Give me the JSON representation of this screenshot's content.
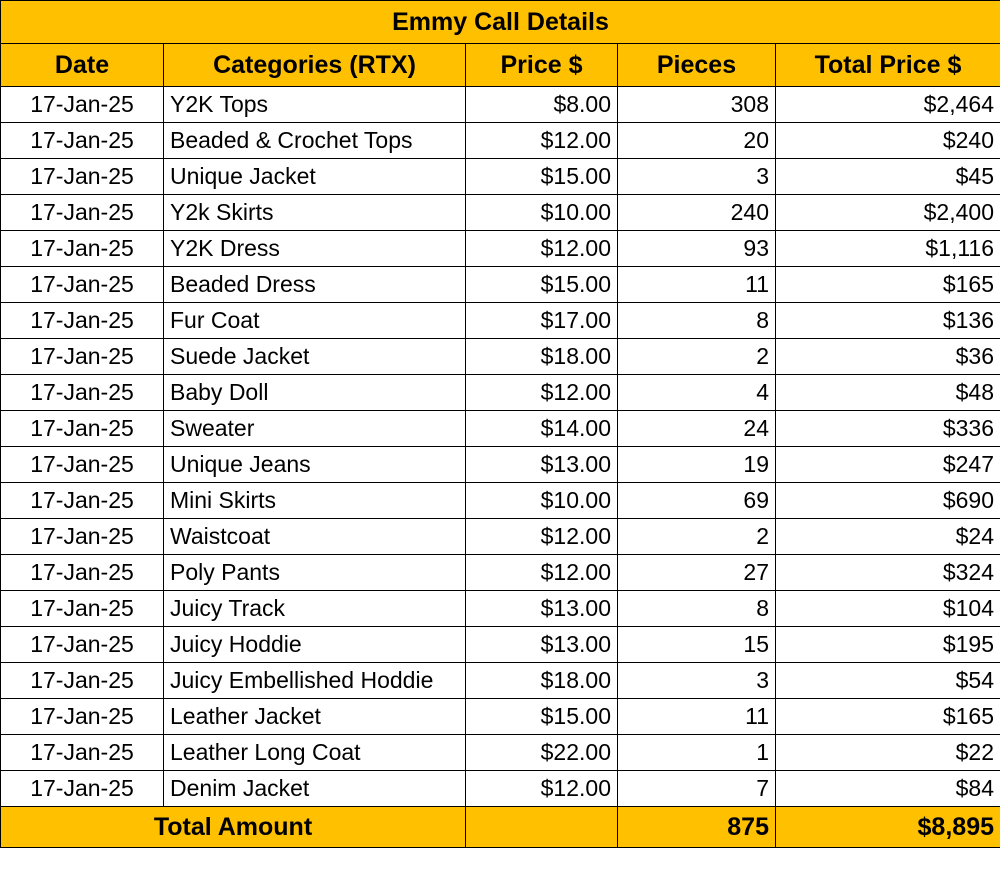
{
  "title": "Emmy Call Details",
  "table": {
    "headers": [
      "Date",
      "Categories (RTX)",
      "Price $",
      "Pieces",
      "Total Price $"
    ],
    "rows": [
      [
        "17-Jan-25",
        "Y2K Tops",
        "$8.00",
        "308",
        "$2,464"
      ],
      [
        "17-Jan-25",
        "Beaded & Crochet Tops",
        "$12.00",
        "20",
        "$240"
      ],
      [
        "17-Jan-25",
        "Unique Jacket",
        "$15.00",
        "3",
        "$45"
      ],
      [
        "17-Jan-25",
        "Y2k Skirts",
        "$10.00",
        "240",
        "$2,400"
      ],
      [
        "17-Jan-25",
        "Y2K Dress",
        "$12.00",
        "93",
        "$1,116"
      ],
      [
        "17-Jan-25",
        "Beaded Dress",
        "$15.00",
        "11",
        "$165"
      ],
      [
        "17-Jan-25",
        "Fur Coat",
        "$17.00",
        "8",
        "$136"
      ],
      [
        "17-Jan-25",
        "Suede Jacket",
        "$18.00",
        "2",
        "$36"
      ],
      [
        "17-Jan-25",
        "Baby Doll",
        "$12.00",
        "4",
        "$48"
      ],
      [
        "17-Jan-25",
        "Sweater",
        "$14.00",
        "24",
        "$336"
      ],
      [
        "17-Jan-25",
        "Unique Jeans",
        "$13.00",
        "19",
        "$247"
      ],
      [
        "17-Jan-25",
        "Mini Skirts",
        "$10.00",
        "69",
        "$690"
      ],
      [
        "17-Jan-25",
        "Waistcoat",
        "$12.00",
        "2",
        "$24"
      ],
      [
        "17-Jan-25",
        "Poly Pants",
        "$12.00",
        "27",
        "$324"
      ],
      [
        "17-Jan-25",
        "Juicy Track",
        "$13.00",
        "8",
        "$104"
      ],
      [
        "17-Jan-25",
        "Juicy Hoddie",
        "$13.00",
        "15",
        "$195"
      ],
      [
        "17-Jan-25",
        "Juicy Embellished Hoddie",
        "$18.00",
        "3",
        "$54"
      ],
      [
        "17-Jan-25",
        "Leather Jacket",
        "$15.00",
        "11",
        "$165"
      ],
      [
        "17-Jan-25",
        "Leather Long Coat",
        "$22.00",
        "1",
        "$22"
      ],
      [
        "17-Jan-25",
        "Denim Jacket",
        "$12.00",
        "7",
        "$84"
      ]
    ],
    "footer": {
      "label": "Total Amount",
      "pieces": "875",
      "total": "$8,895"
    }
  }
}
